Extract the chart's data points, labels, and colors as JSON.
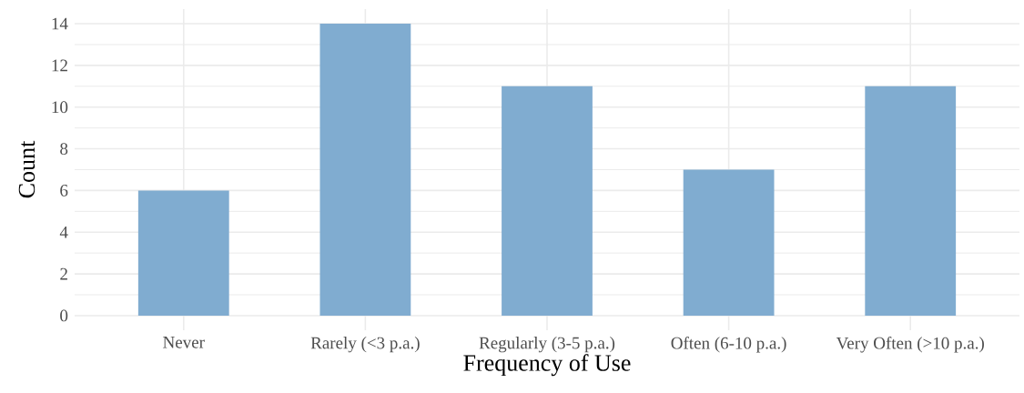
{
  "chart_data": {
    "type": "bar",
    "xlabel": "Frequency of Use",
    "ylabel": "Count",
    "categories": [
      "Never",
      "Rarely (<3 p.a.)",
      "Regularly (3-5 p.a.)",
      "Often (6-10 p.a.)",
      "Very Often (>10 p.a.)"
    ],
    "values": [
      6,
      14,
      11,
      7,
      11
    ],
    "color": "#80acd0",
    "ylim": [
      -0.7,
      14.7
    ],
    "yticks": [
      0,
      2,
      4,
      6,
      8,
      10,
      12,
      14
    ],
    "grid": true
  }
}
